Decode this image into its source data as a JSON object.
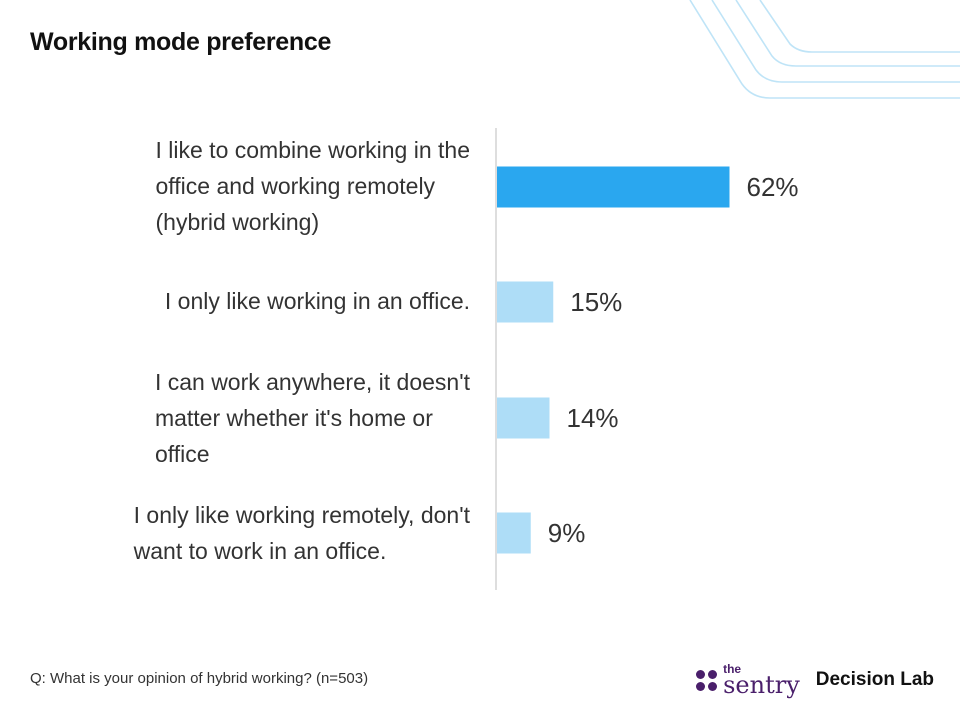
{
  "title": "Working mode preference",
  "footnote": "Q: What is your opinion of hybrid working? (n=503)",
  "logos": {
    "sentry_small": "the",
    "sentry_name": "sentry",
    "decision_lab": "Decision Lab"
  },
  "colors": {
    "highlight": "#2aa7ef",
    "bar": "#aeddf7",
    "axis": "#d4d4d4",
    "decor": "#bfe4f7",
    "brand": "#4a1f6b"
  },
  "chart_data": {
    "type": "bar",
    "orientation": "horizontal",
    "categories": [
      "I like to combine working in the office and working remotely (hybrid working)",
      "I only like working in an office.",
      "I can work anywhere, it doesn't matter whether it's home or office",
      "I only like working remotely, don't want to work in an office."
    ],
    "category_lines": [
      [
        "I like to combine working in the",
        "office and working remotely",
        "(hybrid working)"
      ],
      [
        "I only like working in an office."
      ],
      [
        "I can work anywhere, it doesn't",
        "matter whether it's home or",
        "office"
      ],
      [
        "I only like working remotely, don't",
        "want to work in an office."
      ]
    ],
    "values": [
      62,
      15,
      14,
      9
    ],
    "value_labels": [
      "62%",
      "15%",
      "14%",
      "9%"
    ],
    "highlighted_index": 0,
    "xlim": [
      0,
      100
    ],
    "grid": false,
    "legend": "none"
  }
}
